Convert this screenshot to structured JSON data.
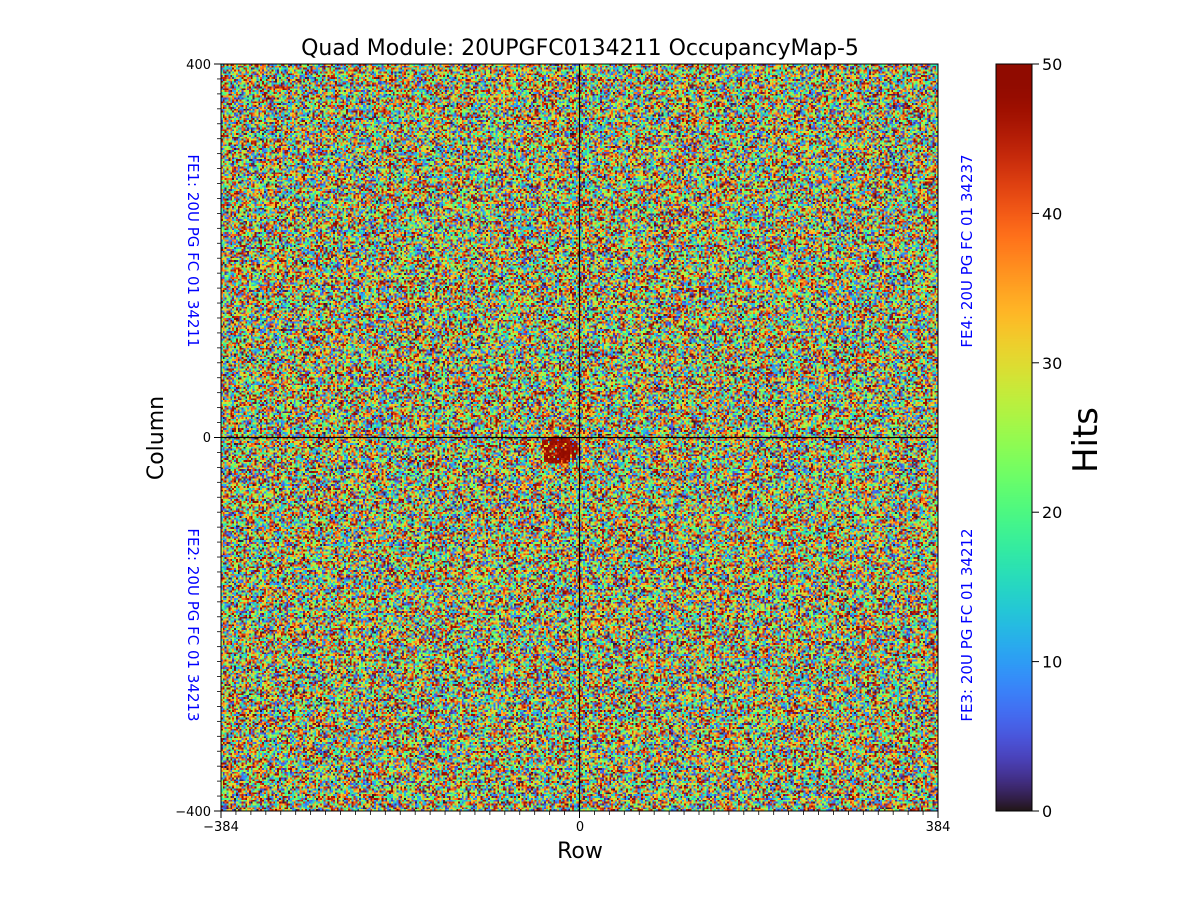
{
  "chart_data": {
    "type": "heatmap",
    "title": "Quad Module: 20UPGFC0134211 OccupancyMap-5",
    "xlabel": "Row",
    "ylabel": "Column",
    "xlim": [
      -384,
      384
    ],
    "ylim": [
      -400,
      400
    ],
    "x_ticks": [
      "−384",
      "0",
      "384"
    ],
    "y_ticks": [
      "400",
      "0",
      "−400"
    ],
    "colorbar": {
      "label": "Hits",
      "range": [
        0,
        50
      ],
      "ticks": [
        "0",
        "10",
        "20",
        "30",
        "40",
        "50"
      ],
      "colormap": "turbo"
    },
    "front_ends": [
      {
        "id": "FE1",
        "label": "FE1: 20U PG FC 01 34211",
        "quadrant": "top-left"
      },
      {
        "id": "FE2",
        "label": "FE2: 20U PG FC 01 34213",
        "quadrant": "bottom-left"
      },
      {
        "id": "FE3",
        "label": "FE3: 20U PG FC 01 34212",
        "quadrant": "bottom-right"
      },
      {
        "id": "FE4",
        "label": "FE4: 20U PG FC 01 34237",
        "quadrant": "top-right"
      }
    ],
    "distribution": "random noise-like occupancy, roughly uniform over 0-50 hits with a small high-occupancy cluster just below and left of the center",
    "grid": false
  }
}
